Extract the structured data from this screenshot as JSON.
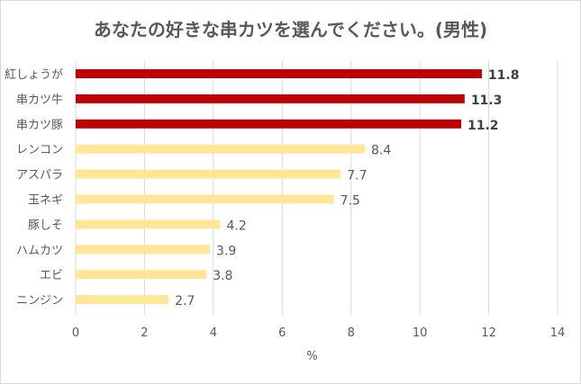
{
  "chart_data": {
    "type": "bar",
    "orientation": "horizontal",
    "title": "あなたの好きな串カツを選んでください。(男性)",
    "xlabel": "%",
    "ylabel": "",
    "xlim": [
      0,
      14
    ],
    "xticks": [
      "0",
      "2",
      "4",
      "6",
      "8",
      "10",
      "12",
      "14"
    ],
    "grid": true,
    "categories": [
      "紅しょうが",
      "串カツ牛",
      "串カツ豚",
      "レンコン",
      "アスパラ",
      "玉ネギ",
      "豚しそ",
      "ハムカツ",
      "エビ",
      "ニンジン"
    ],
    "values": [
      11.8,
      11.3,
      11.2,
      8.4,
      7.7,
      7.5,
      4.2,
      3.9,
      3.8,
      2.7
    ],
    "data_labels": [
      "11.8",
      "11.3",
      "11.2",
      "8.4",
      "7.7",
      "7.5",
      "4.2",
      "3.9",
      "3.8",
      "2.7"
    ],
    "highlight_count": 3,
    "colors": {
      "highlight": "#C00000",
      "normal": "#FFE699",
      "grid": "#d9d9d9",
      "text": "#595959"
    }
  }
}
